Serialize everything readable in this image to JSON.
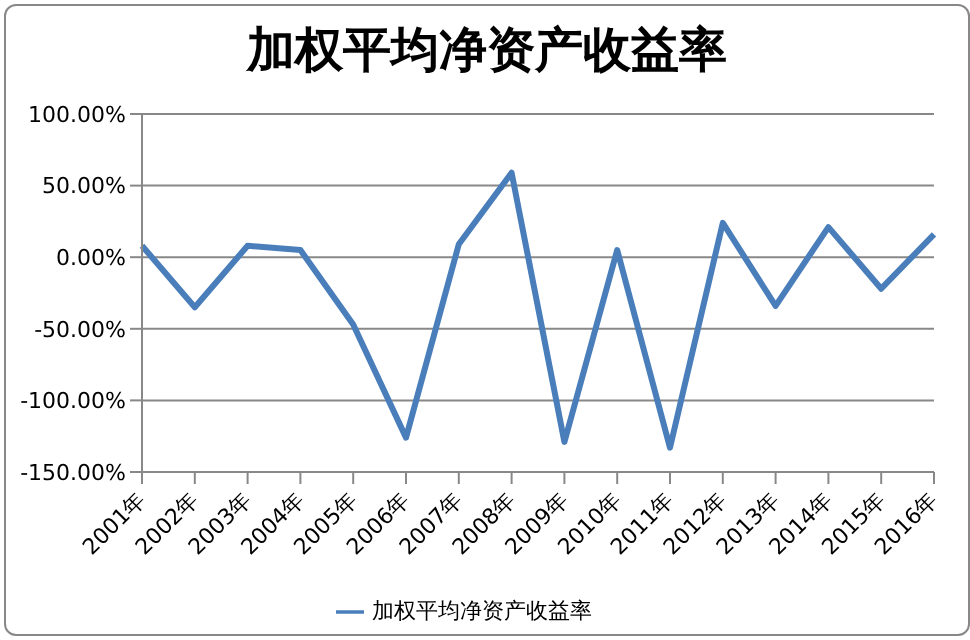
{
  "chart_data": {
    "type": "line",
    "title": "加权平均净资产收益率",
    "categories": [
      "2001年",
      "2002年",
      "2003年",
      "2004年",
      "2005年",
      "2006年",
      "2007年",
      "2008年",
      "2009年",
      "2010年",
      "2011年",
      "2012年",
      "2013年",
      "2014年",
      "2015年",
      "2016年"
    ],
    "series": [
      {
        "name": "加权平均净资产收益率",
        "color": "#4a7ebb",
        "values": [
          8,
          -35,
          8,
          5,
          -47,
          -126,
          9,
          59,
          -129,
          5,
          -133,
          24,
          -34,
          21,
          -22,
          16
        ]
      }
    ],
    "ylim": [
      -150,
      100
    ],
    "yticks": [
      {
        "value": -150,
        "label": "-150.00%"
      },
      {
        "value": -100,
        "label": "-100.00%"
      },
      {
        "value": -50,
        "label": "-50.00%"
      },
      {
        "value": 0,
        "label": "0.00%"
      },
      {
        "value": 50,
        "label": "50.00%"
      },
      {
        "value": 100,
        "label": "100.00%"
      }
    ],
    "grid": "y",
    "legend": "bottom",
    "marker": "none",
    "line_style": "solid"
  }
}
